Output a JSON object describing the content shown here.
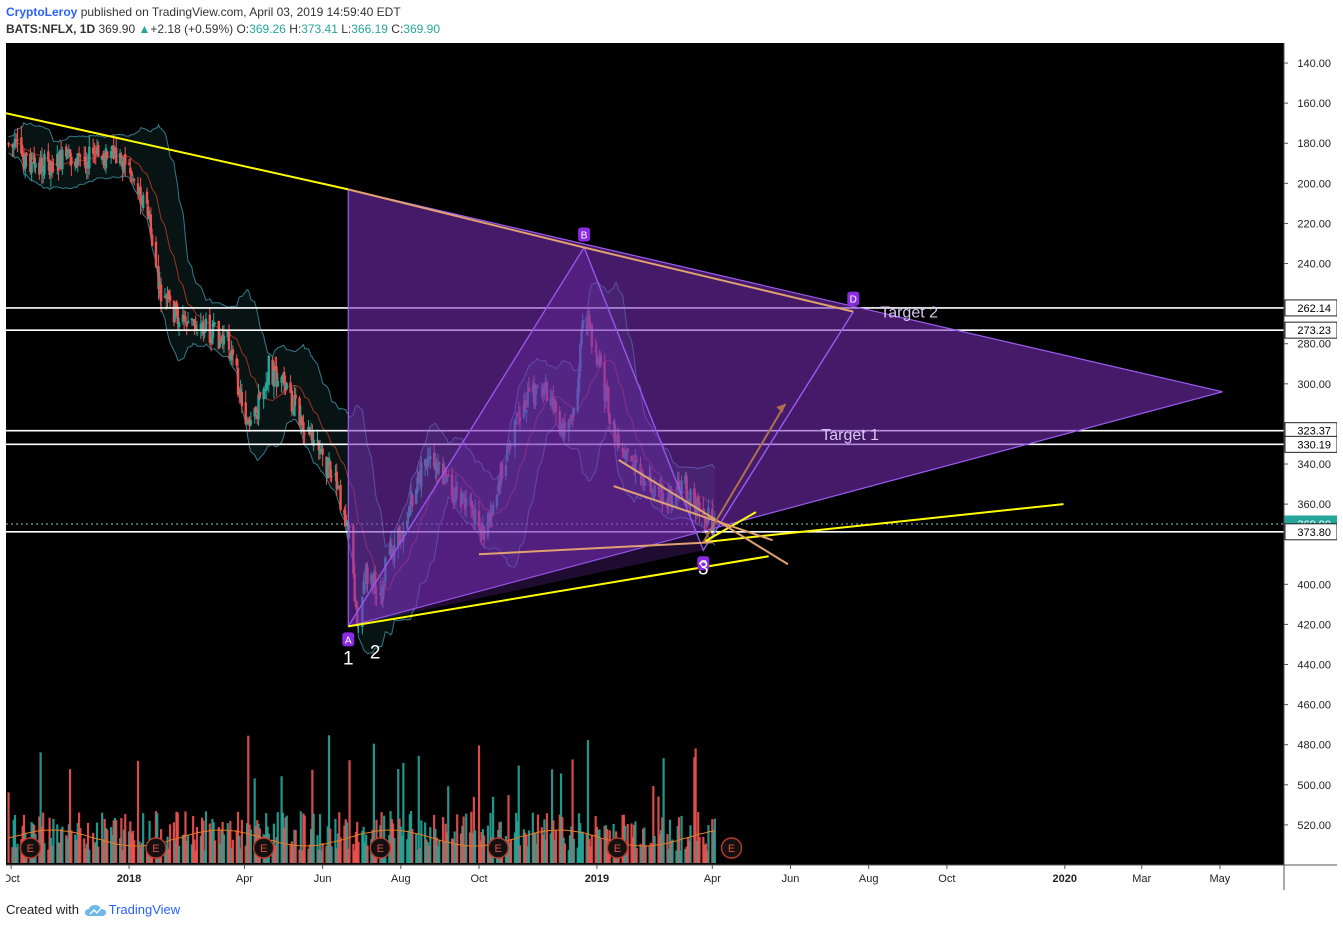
{
  "header": {
    "author": "CryptoLeroy",
    "published_text": "published on TradingView.com, April 03, 2019 14:59:40 EDT",
    "symbol": "BATS:NFLX, 1D",
    "last": "369.90",
    "change_arrow": "▲",
    "change": "+2.18 (+0.59%)",
    "o_label": "O:",
    "o": "369.26",
    "h_label": "H:",
    "h": "373.41",
    "l_label": "L:",
    "l": "366.19",
    "c_label": "C:",
    "c": "369.90"
  },
  "footer": {
    "created_with": "Created with",
    "brand": "TradingView"
  },
  "colors": {
    "background": "#000000",
    "up": "#26a69a",
    "down": "#ef5350",
    "pattern_fill": "#7b2fbf",
    "pattern_edge": "#9c5cf0",
    "trendline": "#ffff00",
    "wedge": "#e0a070",
    "level_line": "#ffffff"
  },
  "chart_data": {
    "type": "candlestick",
    "symbol": "BATS:NFLX",
    "interval": "1D",
    "y_axis": {
      "inverted": true,
      "range": [
        130,
        540
      ],
      "ticks": [
        140,
        160,
        180,
        200,
        220,
        240,
        280,
        300,
        340,
        360,
        400,
        420,
        440,
        460,
        480,
        500,
        520
      ]
    },
    "x_axis": {
      "range": [
        "2017-09-27",
        "2020-06-20"
      ],
      "ticks": [
        {
          "label": "Oct",
          "date": "2017-10-01"
        },
        {
          "label": "2018",
          "date": "2018-01-01"
        },
        {
          "label": "Apr",
          "date": "2018-04-01"
        },
        {
          "label": "Jun",
          "date": "2018-06-01"
        },
        {
          "label": "Aug",
          "date": "2018-08-01"
        },
        {
          "label": "Oct",
          "date": "2018-10-01"
        },
        {
          "label": "2019",
          "date": "2019-01-01"
        },
        {
          "label": "Apr",
          "date": "2019-04-01"
        },
        {
          "label": "Jun",
          "date": "2019-06-01"
        },
        {
          "label": "Aug",
          "date": "2019-08-01"
        },
        {
          "label": "Oct",
          "date": "2019-10-01"
        },
        {
          "label": "2020",
          "date": "2020-01-01"
        },
        {
          "label": "Mar",
          "date": "2020-03-01"
        },
        {
          "label": "May",
          "date": "2020-05-01"
        }
      ]
    },
    "price_path": [
      [
        "2017-09-29",
        180
      ],
      [
        "2017-10-20",
        192
      ],
      [
        "2017-11-15",
        188
      ],
      [
        "2017-12-10",
        186
      ],
      [
        "2017-12-29",
        188
      ],
      [
        "2018-01-15",
        212
      ],
      [
        "2018-01-25",
        255
      ],
      [
        "2018-02-10",
        268
      ],
      [
        "2018-03-01",
        272
      ],
      [
        "2018-03-20",
        280
      ],
      [
        "2018-04-05",
        325
      ],
      [
        "2018-04-20",
        292
      ],
      [
        "2018-05-05",
        305
      ],
      [
        "2018-05-25",
        328
      ],
      [
        "2018-06-08",
        345
      ],
      [
        "2018-06-21",
        368
      ],
      [
        "2018-06-28",
        418
      ],
      [
        "2018-07-05",
        395
      ],
      [
        "2018-07-17",
        405
      ],
      [
        "2018-07-20",
        390
      ],
      [
        "2018-08-01",
        375
      ],
      [
        "2018-08-20",
        338
      ],
      [
        "2018-09-10",
        352
      ],
      [
        "2018-09-25",
        365
      ],
      [
        "2018-10-05",
        375
      ],
      [
        "2018-10-20",
        340
      ],
      [
        "2018-11-05",
        310
      ],
      [
        "2018-11-20",
        300
      ],
      [
        "2018-12-05",
        325
      ],
      [
        "2018-12-15",
        315
      ],
      [
        "2018-12-22",
        262
      ],
      [
        "2019-01-03",
        292
      ],
      [
        "2019-01-18",
        335
      ],
      [
        "2019-02-05",
        345
      ],
      [
        "2019-02-25",
        360
      ],
      [
        "2019-03-10",
        350
      ],
      [
        "2019-03-25",
        365
      ],
      [
        "2019-04-03",
        370
      ]
    ],
    "volume_earnings_markers": [
      "2017-10-16",
      "2018-01-22",
      "2018-04-16",
      "2018-07-16",
      "2018-10-16",
      "2019-01-17",
      "2019-04-16"
    ],
    "current_price": 369.9,
    "horizontal_levels": [
      262.14,
      273.23,
      323.37,
      330.19,
      373.8
    ],
    "price_labels": [
      "262.14",
      "273.23",
      "323.37",
      "330.19",
      "369.90",
      "373.80"
    ],
    "harmonic_pattern": {
      "points": [
        {
          "label": "A",
          "date": "2018-06-21",
          "price": 421
        },
        {
          "label": "B",
          "date": "2018-12-22",
          "price": 232
        },
        {
          "label": "C",
          "date": "2019-03-25",
          "price": 383
        },
        {
          "label": "D",
          "date": "2019-07-20",
          "price": 264
        }
      ]
    },
    "triangle": [
      {
        "date": "2018-06-21",
        "price": 203
      },
      {
        "date": "2020-05-03",
        "price": 304
      },
      {
        "date": "2018-06-21",
        "price": 421
      }
    ],
    "upper_trendline": [
      {
        "date": "2017-09-27",
        "price": 165
      },
      {
        "date": "2018-06-21",
        "price": 203
      }
    ],
    "lower_trendlines": [
      {
        "from": {
          "date": "2018-06-21",
          "price": 421
        },
        "to": {
          "date": "2019-05-15",
          "price": 386
        }
      },
      {
        "from": {
          "date": "2019-03-25",
          "price": 379
        },
        "to": {
          "date": "2019-12-31",
          "price": 360
        }
      },
      {
        "from": {
          "date": "2019-03-25",
          "price": 379
        },
        "to": {
          "date": "2019-05-05",
          "price": 364
        }
      }
    ],
    "wedge_lines": [
      {
        "from": {
          "date": "2019-01-18",
          "price": 338
        },
        "to": {
          "date": "2019-05-30",
          "price": 390
        }
      },
      {
        "from": {
          "date": "2019-01-14",
          "price": 351
        },
        "to": {
          "date": "2019-05-18",
          "price": 378
        }
      },
      {
        "from": {
          "date": "2018-10-01",
          "price": 385
        },
        "to": {
          "date": "2019-04-01",
          "price": 379
        }
      }
    ],
    "wave_labels": [
      {
        "label": "1",
        "date": "2018-06-21",
        "price": 440
      },
      {
        "label": "2",
        "date": "2018-07-12",
        "price": 437
      },
      {
        "label": "3",
        "date": "2019-03-25",
        "price": 395
      }
    ],
    "annotations": [
      {
        "text": "Target 2",
        "date": "2019-08-10",
        "price": 267
      },
      {
        "text": "Target 1",
        "date": "2019-06-25",
        "price": 328
      }
    ]
  }
}
